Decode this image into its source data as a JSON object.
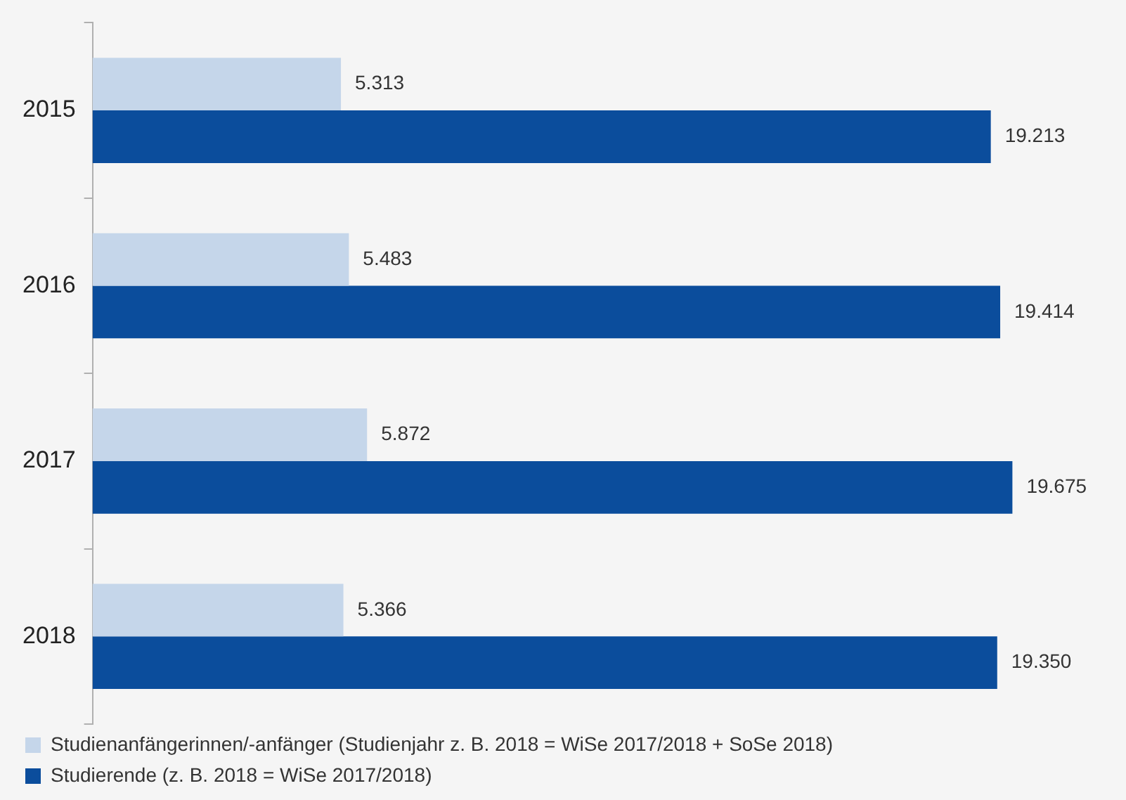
{
  "chart_data": {
    "type": "bar",
    "orientation": "horizontal",
    "categories": [
      "2015",
      "2016",
      "2017",
      "2018"
    ],
    "tick_labels": "y",
    "legend": "bottom left",
    "series": [
      {
        "name": "Studienanfängerinnen/-anfänger (Studienjahr z. B. 2018 = WiSe 2017/2018 + SoSe 2018)",
        "color": "#c5d6ea",
        "values": [
          5313,
          5483,
          5872,
          5366
        ],
        "value_labels": [
          "5.313",
          "5.483",
          "5.872",
          "5.366"
        ]
      },
      {
        "name": "Studierende (z. B. 2018 = WiSe 2017/2018)",
        "color": "#0b4d9c",
        "values": [
          19213,
          19414,
          19675,
          19350
        ],
        "value_labels": [
          "19.213",
          "19.414",
          "19.675",
          "19.350"
        ]
      }
    ]
  }
}
